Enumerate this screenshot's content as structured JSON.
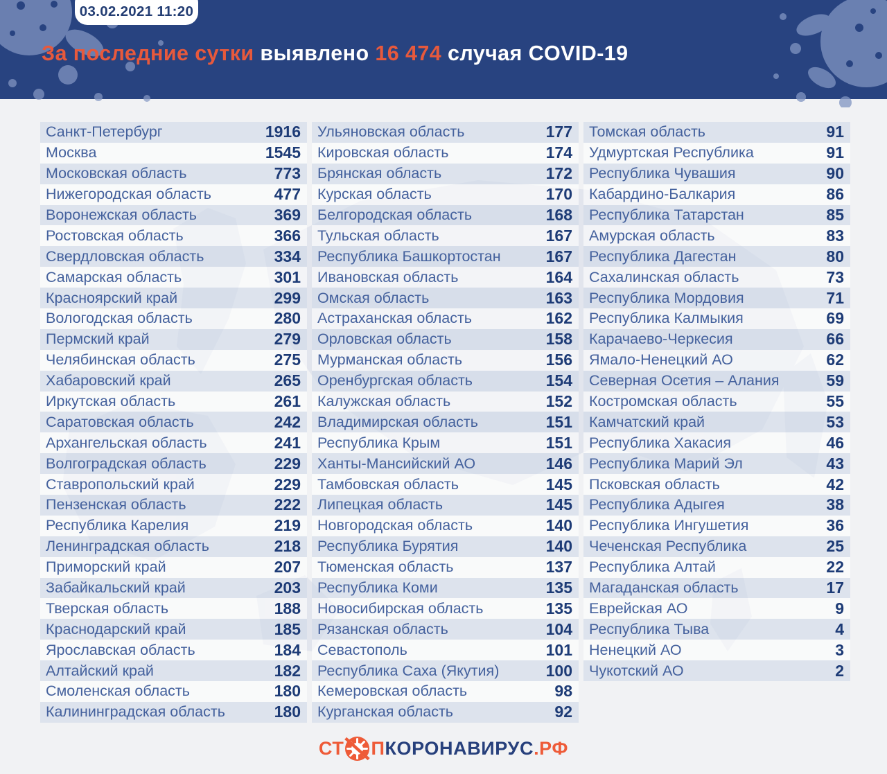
{
  "header": {
    "timestamp": "03.02.2021 11:20",
    "title_segments": [
      "За последние сутки",
      " выявлено ",
      "16 474",
      " случая COVID-19"
    ]
  },
  "footer": {
    "logo_st": "СТ",
    "logo_p": "П",
    "logo_main": "КОРОНАВИРУС",
    "logo_tld": ".РФ",
    "virus_icon": "no-virus-icon"
  },
  "colors": {
    "header_bg": "#284380",
    "accent_orange": "#e7593c",
    "logo_orange": "#ee5b38",
    "region_text": "#44619d",
    "value_text": "#1d3b76",
    "row_stripe": "#dde3ee",
    "page_bg": "#f1f2f4",
    "splat_blue": "#8699c5"
  },
  "chart_data": {
    "type": "table",
    "title": "За последние сутки выявлено 16 474 случая COVID-19",
    "date": "03.02.2021 11:20",
    "total_new_cases": 16474,
    "columns": [
      {
        "rows": [
          [
            "Санкт-Петербург",
            1916
          ],
          [
            "Москва",
            1545
          ],
          [
            "Московская область",
            773
          ],
          [
            "Нижегородская область",
            477
          ],
          [
            "Воронежская область",
            369
          ],
          [
            "Ростовская область",
            366
          ],
          [
            "Свердловская область",
            334
          ],
          [
            "Самарская область",
            301
          ],
          [
            "Красноярский край",
            299
          ],
          [
            "Вологодская область",
            280
          ],
          [
            "Пермский край",
            279
          ],
          [
            "Челябинская область",
            275
          ],
          [
            "Хабаровский край",
            265
          ],
          [
            "Иркутская область",
            261
          ],
          [
            "Саратовская область",
            242
          ],
          [
            "Архангельская область",
            241
          ],
          [
            "Волгоградская область",
            229
          ],
          [
            "Ставропольский край",
            229
          ],
          [
            "Пензенская область",
            222
          ],
          [
            "Республика Карелия",
            219
          ],
          [
            "Ленинградская область",
            218
          ],
          [
            "Приморский край",
            207
          ],
          [
            "Забайкальский край",
            203
          ],
          [
            "Тверская область",
            188
          ],
          [
            "Краснодарский край",
            185
          ],
          [
            "Ярославская область",
            184
          ],
          [
            "Алтайский край",
            182
          ],
          [
            "Смоленская область",
            180
          ],
          [
            "Калининградская область",
            180
          ]
        ]
      },
      {
        "rows": [
          [
            "Ульяновская область",
            177
          ],
          [
            "Кировская область",
            174
          ],
          [
            "Брянская область",
            172
          ],
          [
            "Курская область",
            170
          ],
          [
            "Белгородская область",
            168
          ],
          [
            "Тульская область",
            167
          ],
          [
            "Республика Башкортостан",
            167
          ],
          [
            "Ивановская область",
            164
          ],
          [
            "Омская область",
            163
          ],
          [
            "Астраханская область",
            162
          ],
          [
            "Орловская область",
            158
          ],
          [
            "Мурманская область",
            156
          ],
          [
            "Оренбургская область",
            154
          ],
          [
            "Калужская область",
            152
          ],
          [
            "Владимирская область",
            151
          ],
          [
            "Республика Крым",
            151
          ],
          [
            "Ханты-Мансийский АО",
            146
          ],
          [
            "Тамбовская область",
            145
          ],
          [
            "Липецкая область",
            145
          ],
          [
            "Новгородская область",
            140
          ],
          [
            "Республика Бурятия",
            140
          ],
          [
            "Тюменская область",
            137
          ],
          [
            "Республика Коми",
            135
          ],
          [
            "Новосибирская область",
            135
          ],
          [
            "Рязанская область",
            104
          ],
          [
            "Севастополь",
            101
          ],
          [
            "Республика Саха (Якутия)",
            100
          ],
          [
            "Кемеровская область",
            98
          ],
          [
            "Курганская область",
            92
          ]
        ]
      },
      {
        "rows": [
          [
            "Томская область",
            91
          ],
          [
            "Удмуртская Республика",
            91
          ],
          [
            "Республика Чувашия",
            90
          ],
          [
            "Кабардино-Балкария",
            86
          ],
          [
            "Республика Татарстан",
            85
          ],
          [
            "Амурская область",
            83
          ],
          [
            "Республика Дагестан",
            80
          ],
          [
            "Сахалинская область",
            73
          ],
          [
            "Республика Мордовия",
            71
          ],
          [
            "Республика Калмыкия",
            69
          ],
          [
            "Карачаево-Черкесия",
            66
          ],
          [
            "Ямало-Ненецкий АО",
            62
          ],
          [
            "Северная Осетия – Алания",
            59
          ],
          [
            "Костромская область",
            55
          ],
          [
            "Камчатский край",
            53
          ],
          [
            "Республика Хакасия",
            46
          ],
          [
            "Республика Марий Эл",
            43
          ],
          [
            "Псковская область",
            42
          ],
          [
            "Республика Адыгея",
            38
          ],
          [
            "Республика Ингушетия",
            36
          ],
          [
            "Чеченская Республика",
            25
          ],
          [
            "Республика Алтай",
            22
          ],
          [
            "Магаданская область",
            17
          ],
          [
            "Еврейская АО",
            9
          ],
          [
            "Республика Тыва",
            4
          ],
          [
            "Ненецкий АО",
            3
          ],
          [
            "Чукотский АО",
            2
          ]
        ]
      }
    ]
  }
}
